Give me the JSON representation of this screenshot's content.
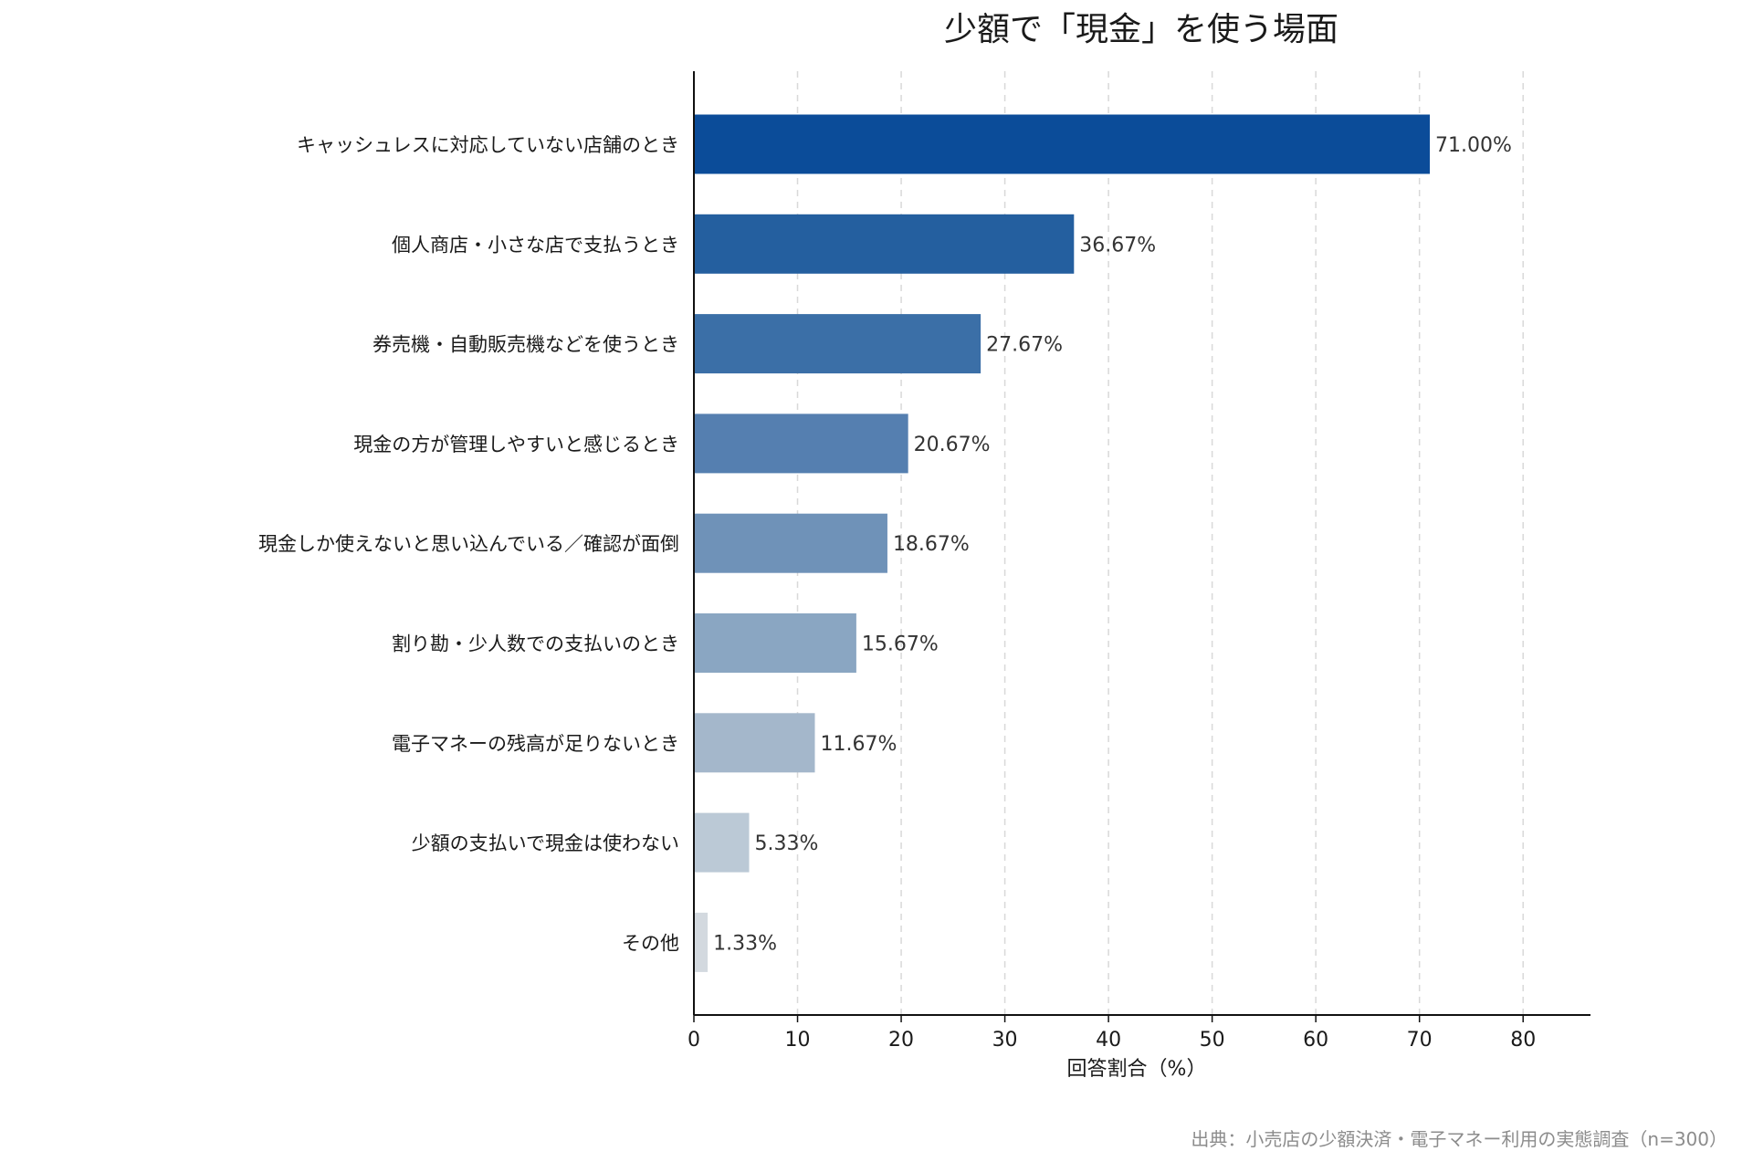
{
  "chart_data": {
    "type": "bar",
    "orientation": "horizontal",
    "title": "少額で「現金」を使う場面",
    "xlabel": "回答割合（%）",
    "ylabel": "",
    "xlim": [
      0,
      86.5
    ],
    "xticks": [
      0,
      10,
      20,
      30,
      40,
      50,
      60,
      70,
      80
    ],
    "grid": "x-dashed",
    "categories": [
      "キャッシュレスに対応していない店舗のとき",
      "個人商店・小さな店で支払うとき",
      "券売機・自動販売機などを使うとき",
      "現金の方が管理しやすいと感じるとき",
      "現金しか使えないと思い込んでいる／確認が面倒",
      "割り勘・少人数での支払いのとき",
      "電子マネーの残高が足りないとき",
      "少額の支払いで現金は使わない",
      "その他"
    ],
    "values": [
      71.0,
      36.67,
      27.67,
      20.67,
      18.67,
      15.67,
      11.67,
      5.33,
      1.33
    ],
    "value_labels": [
      "71.00%",
      "36.67%",
      "27.67%",
      "20.67%",
      "18.67%",
      "15.67%",
      "11.67%",
      "5.33%",
      "1.33%"
    ],
    "colors": [
      "#0b4c99",
      "#245f9f",
      "#3b6fa7",
      "#557fb0",
      "#6f92b8",
      "#8aa6c2",
      "#a4b7cb",
      "#bbc9d6",
      "#d3d9df"
    ]
  },
  "source_note": "出典：小売店の少額決済・電子マネー利用の実態調査（n=300）",
  "styles": {
    "title_color": "#1a1a1a",
    "text_color": "#1a1a1a",
    "value_label_color": "#333333",
    "grid_color": "#d9d9d9",
    "axis_color": "#111111",
    "source_color": "#8c8c8c"
  }
}
